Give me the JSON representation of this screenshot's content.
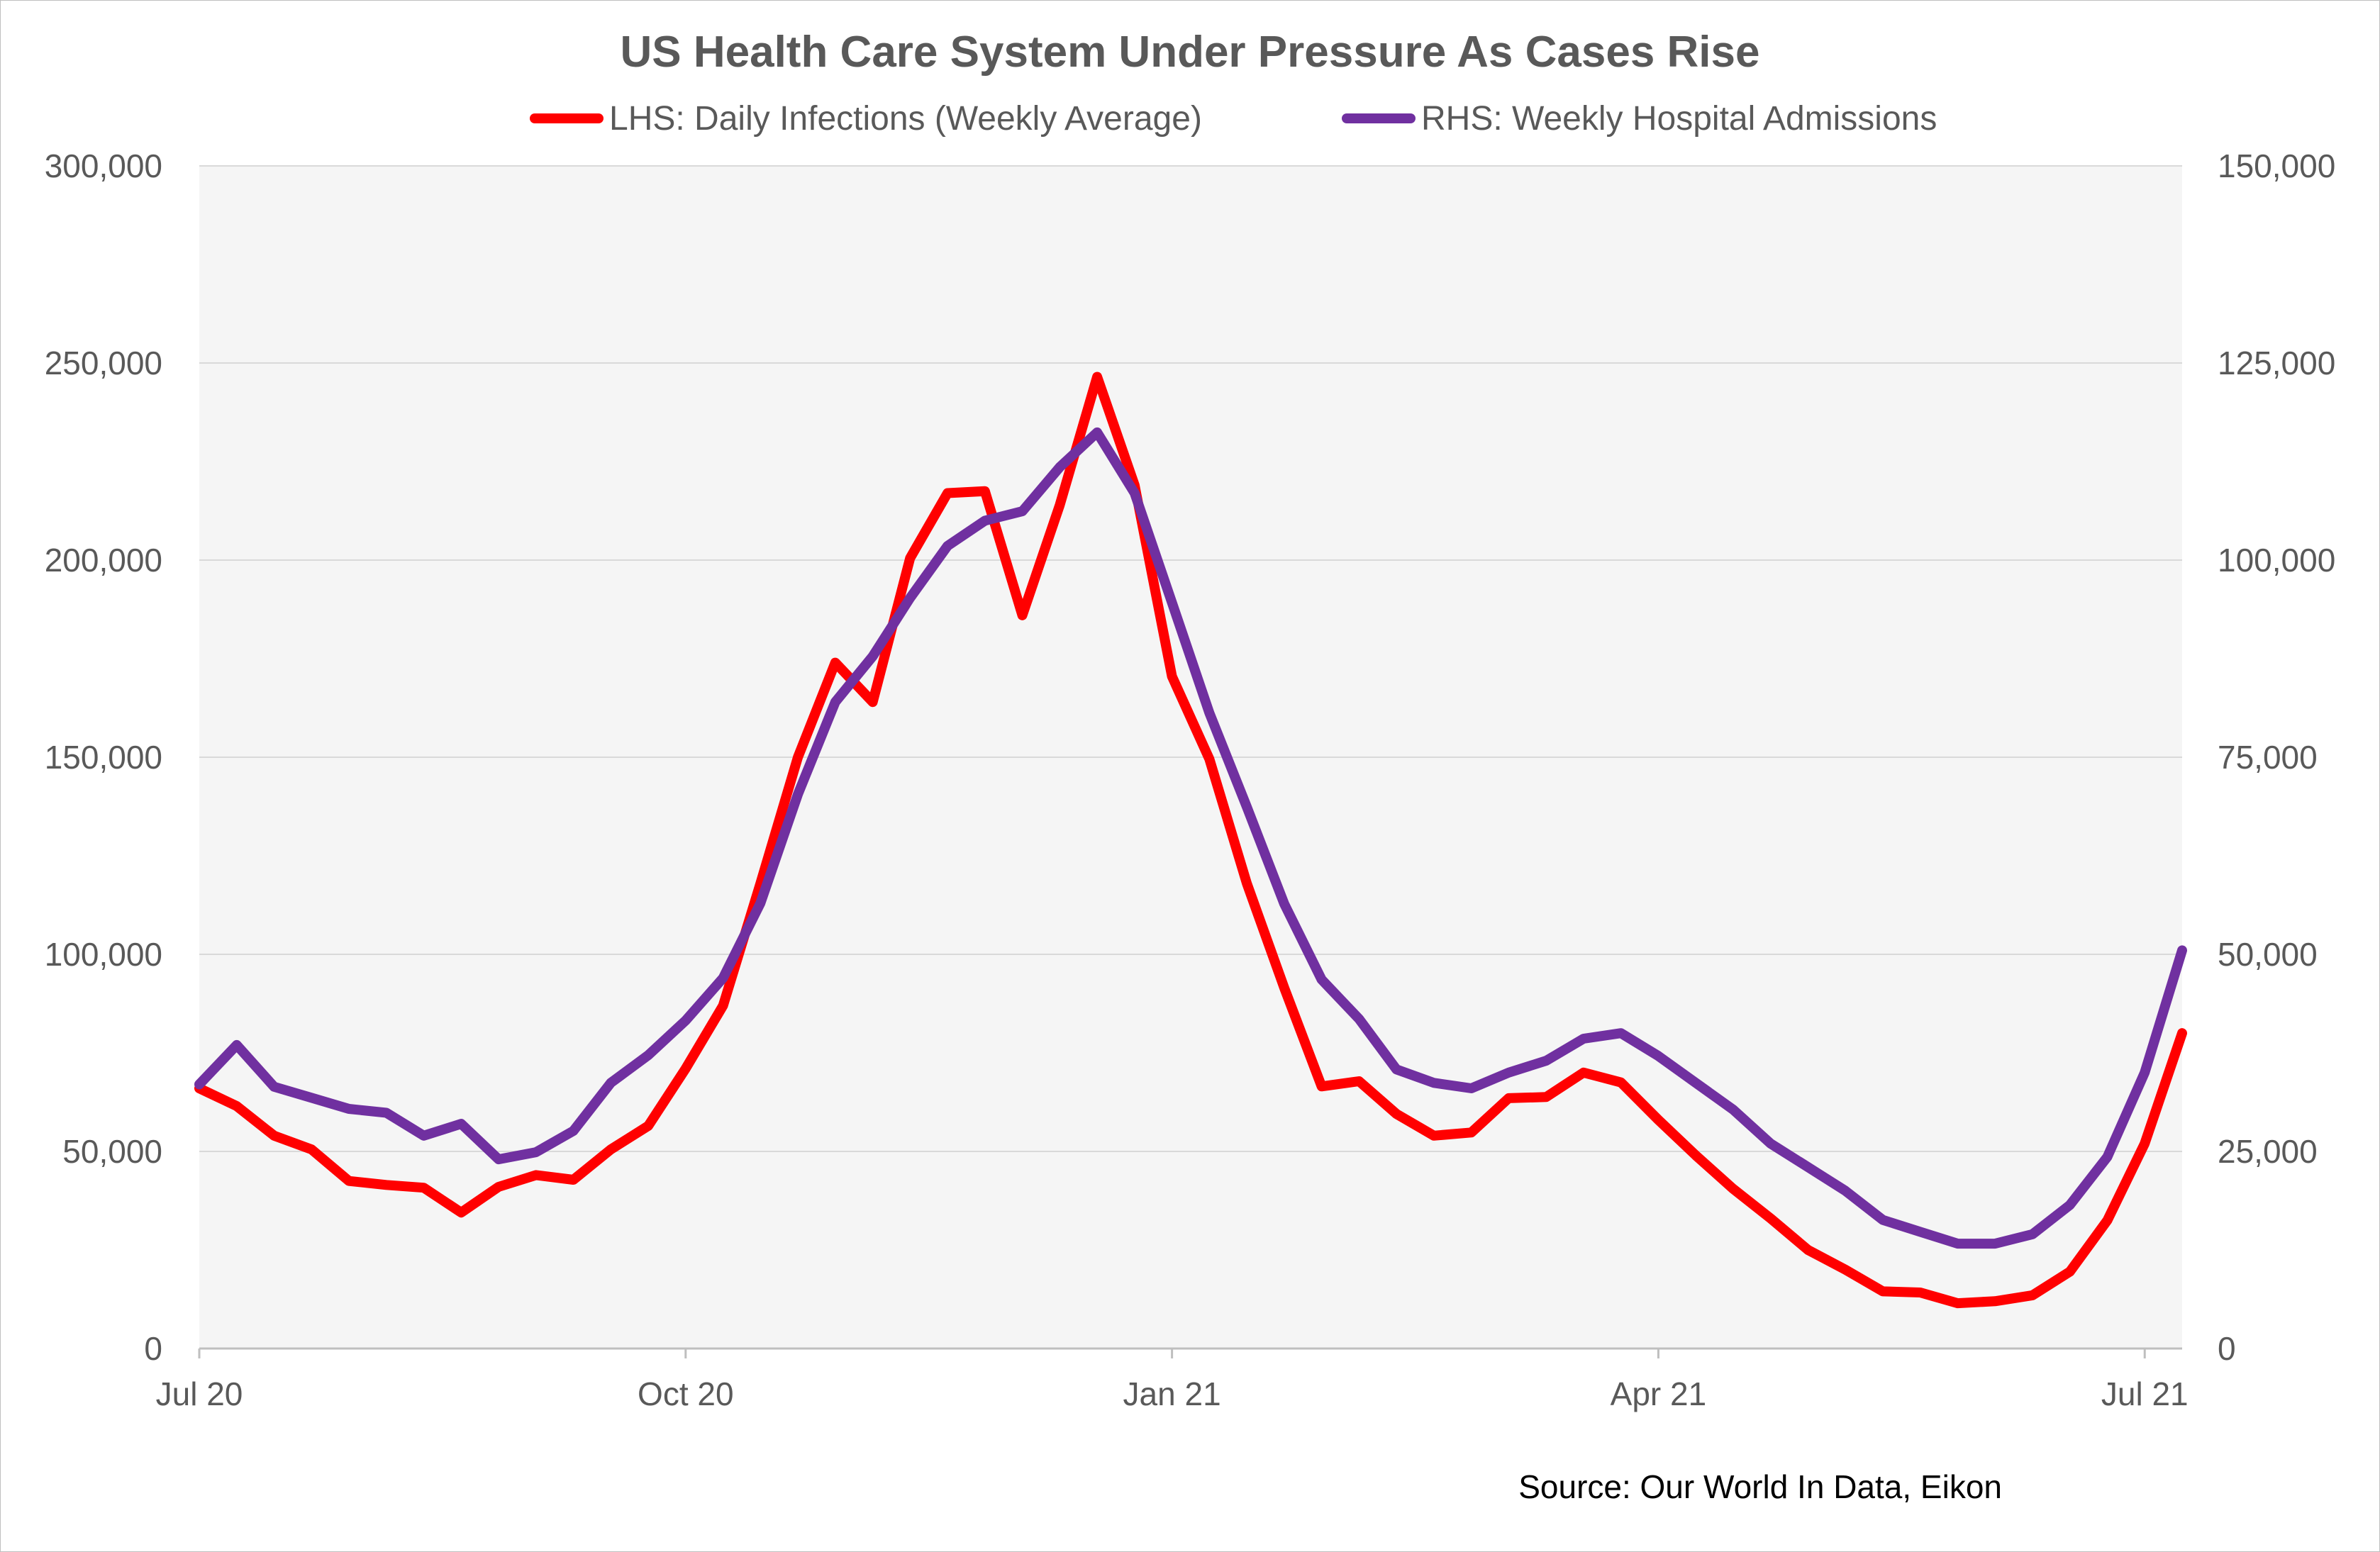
{
  "chart_data": {
    "type": "line",
    "title": "US Health Care System Under Pressure As Cases Rise",
    "source": "Source: Our World In Data, Eikon",
    "x_tick_labels": [
      "Jul 20",
      "Oct 20",
      "Jan 21",
      "Apr 21",
      "Jul 21"
    ],
    "x_tick_weeks": [
      0,
      13,
      26,
      39,
      52
    ],
    "left_axis": {
      "ylim": [
        0,
        300000
      ],
      "ticks": [
        0,
        50000,
        100000,
        150000,
        200000,
        250000,
        300000
      ],
      "tick_labels": [
        "0",
        "50,000",
        "100,000",
        "150,000",
        "200,000",
        "250,000",
        "300,000"
      ]
    },
    "right_axis": {
      "ylim": [
        0,
        150000
      ],
      "ticks": [
        0,
        25000,
        50000,
        75000,
        100000,
        125000,
        150000
      ],
      "tick_labels": [
        "0",
        "25,000",
        "50,000",
        "75,000",
        "100,000",
        "125,000",
        "150,000"
      ]
    },
    "grid": true,
    "legend_position": "top",
    "series": [
      {
        "name": "LHS: Daily Infections (Weekly Average)",
        "axis": "left",
        "color": "#ff0000",
        "values": [
          66000,
          61500,
          54000,
          50500,
          42500,
          41500,
          40800,
          34500,
          41000,
          44000,
          42800,
          50500,
          56500,
          71000,
          87000,
          118000,
          150000,
          174000,
          164000,
          200500,
          217000,
          217500,
          186000,
          214000,
          246500,
          219000,
          170500,
          149500,
          118000,
          91500,
          66500,
          67800,
          59500,
          54000,
          54800,
          63500,
          63800,
          70000,
          67500,
          58000,
          49000,
          40500,
          33000,
          25000,
          20000,
          14500,
          14200,
          11500,
          12000,
          13500,
          19500,
          32500,
          52000,
          80000
        ]
      },
      {
        "name": "RHS: Weekly Hospital Admissions",
        "axis": "right",
        "color": "#7030a0",
        "values": [
          33500,
          38500,
          33200,
          31800,
          30400,
          29900,
          27000,
          28500,
          24000,
          24900,
          27600,
          33700,
          37200,
          41600,
          47000,
          56500,
          70300,
          82000,
          87800,
          95200,
          101800,
          105000,
          106200,
          111800,
          116200,
          108500,
          94600,
          80600,
          68700,
          56400,
          46800,
          41800,
          35400,
          33700,
          33000,
          35000,
          36500,
          39300,
          40000,
          37100,
          33700,
          30300,
          26000,
          23000,
          20000,
          16300,
          14800,
          13300,
          13300,
          14500,
          18200,
          24300,
          35000,
          50500
        ]
      }
    ]
  }
}
